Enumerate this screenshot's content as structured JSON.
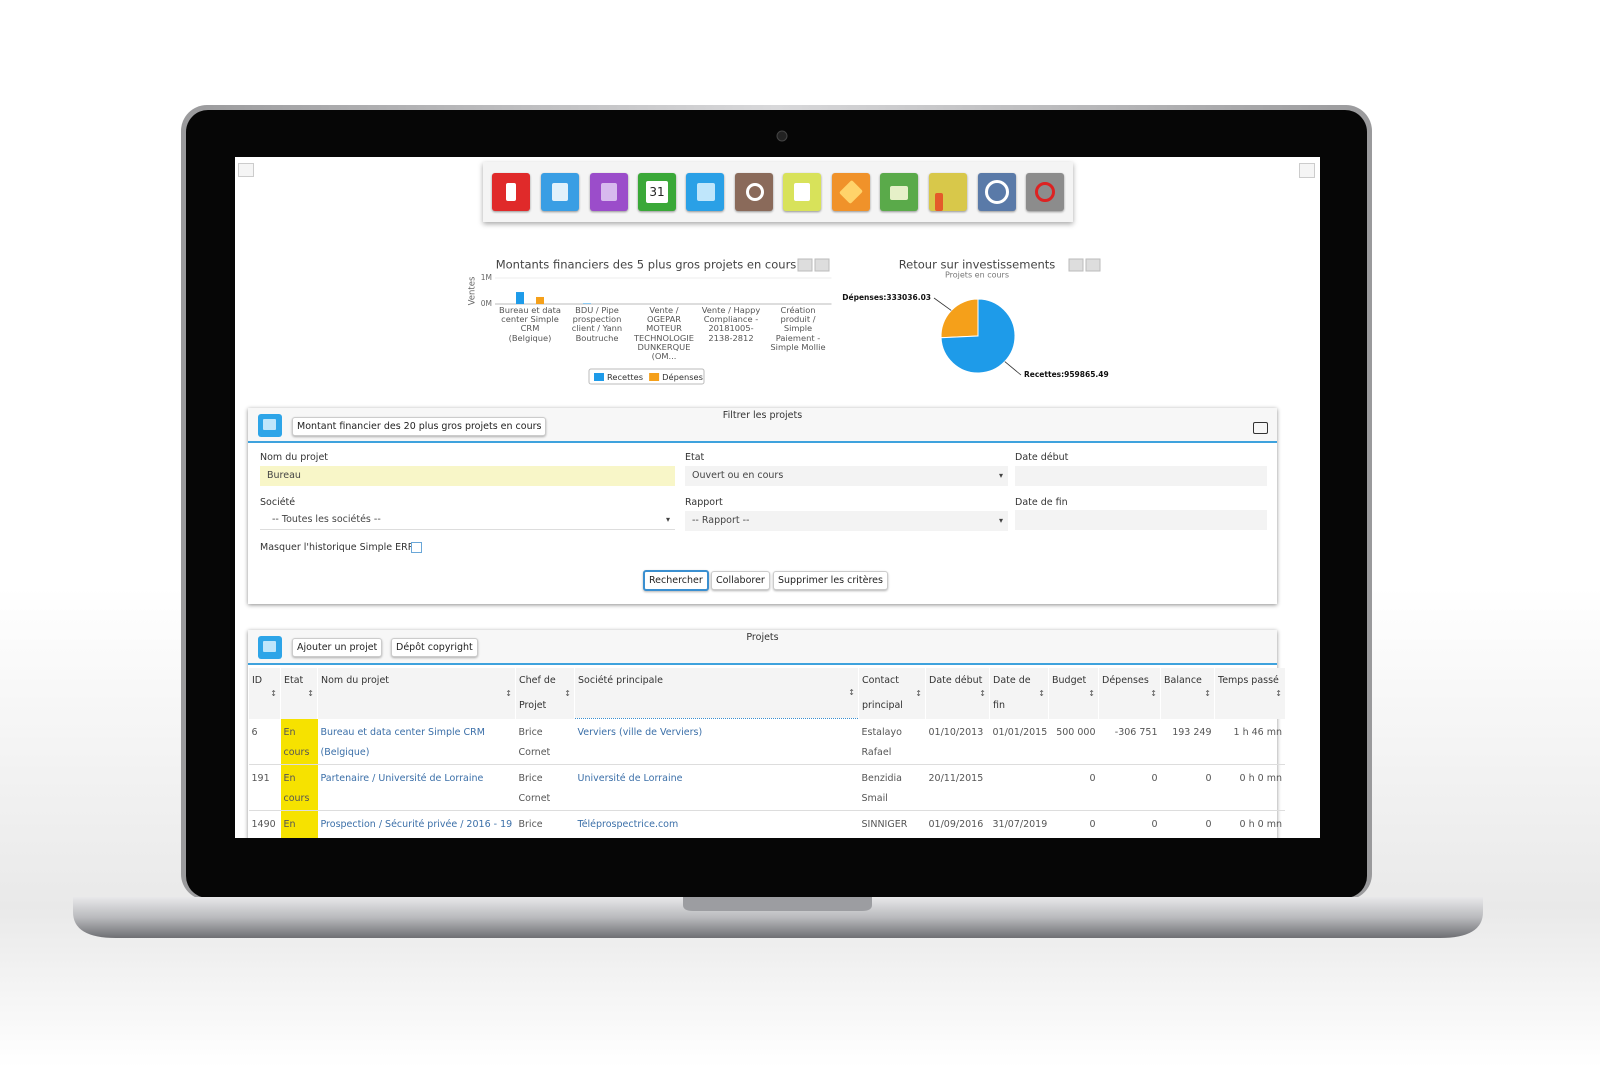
{
  "toolbar": {
    "calendar_day": "31"
  },
  "bar_chart": {
    "type": "bar",
    "title": "Montants financiers des 5 plus gros projets en cours",
    "y_label": "Ventes",
    "categories": [
      "Bureau et data center Simple CRM (Belgique)",
      "BDU / Pipe prospection client / Yann Boutruche",
      "Vente / OGEPAR MOTEUR TECHNOLOGIE DUNKERQUE (OM...",
      "Vente / Happy Compliance - 20181005-2138-2812",
      "Création produit / Simple Paiement - Simple Mollie"
    ],
    "series": [
      {
        "name": "Recettes",
        "color": "#1e9be9",
        "values": [
          460000,
          20000,
          0,
          0,
          0
        ]
      },
      {
        "name": "Dépenses",
        "color": "#f5a01a",
        "values": [
          270000,
          0,
          0,
          0,
          0
        ]
      }
    ],
    "ylim": [
      0,
      1000000
    ],
    "yticks": [
      {
        "value": 0,
        "label": "0M"
      },
      {
        "value": 1000000,
        "label": "1M"
      }
    ],
    "grid": true
  },
  "pie_chart": {
    "type": "pie",
    "title": "Retour sur investissements",
    "subtitle": "Projets en cours",
    "categories": [
      "Dépenses",
      "Recettes"
    ],
    "values": [
      333036.03,
      959865.49
    ],
    "value_labels": [
      "Dépenses:333036.03",
      "Recettes:959865.49"
    ],
    "colors": [
      "#f5a01a",
      "#1e9be9"
    ]
  },
  "filter_panel": {
    "title": "Filtrer les projets",
    "report_button": "Montant financier des 20 plus gros projets en cours",
    "fields": [
      {
        "label": "Nom du projet",
        "value": "Bureau"
      },
      {
        "label": "Etat",
        "value": "Ouvert ou en cours"
      },
      {
        "label": "Date début"
      },
      {
        "label": "Société",
        "value": "-- Toutes les sociétés --"
      },
      {
        "label": "Rapport",
        "value": "-- Rapport --"
      },
      {
        "label": "Date de fin"
      }
    ],
    "checkbox_label": "Masquer l'historique Simple ERP",
    "buttons": [
      "Rechercher",
      "Collaborer",
      "Supprimer les critères"
    ]
  },
  "projects_panel": {
    "title": "Projets",
    "buttons": [
      "Ajouter un projet",
      "Dépôt copyright"
    ],
    "table": {
      "headers": [
        "ID",
        "Etat",
        "Nom du projet",
        "Chef de Projet",
        "Société principale",
        "Contact principal",
        "Date début",
        "Date de fin",
        "Budget",
        "Dépenses",
        "Balance",
        "Temps passé"
      ],
      "rows": [
        [
          "6",
          "En cours",
          "Bureau et data center Simple CRM (Belgique)",
          "Brice Cornet",
          "Verviers (ville de Verviers)",
          "Estalayo Rafael",
          "01/10/2013",
          "01/01/2015",
          "500 000",
          "-306 751",
          "193 249",
          "1 h 46 mn"
        ],
        [
          "191",
          "En cours",
          "Partenaire / Université de Lorraine",
          "Brice Cornet",
          "Université de Lorraine",
          "Benzidia Smail",
          "20/11/2015",
          null,
          "0",
          "0",
          "0",
          "0 h 0 mn"
        ],
        [
          "1490",
          "En",
          "Prospection / Sécurité privée / 2016 - 19",
          "Brice",
          "Téléprospectrice.com",
          "SINNIGER",
          "01/09/2016",
          "31/07/2019",
          "0",
          "0",
          "0",
          "0 h 0 mn"
        ]
      ]
    }
  }
}
